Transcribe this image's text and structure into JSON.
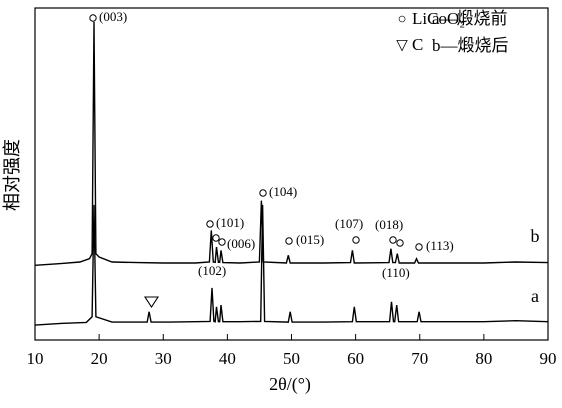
{
  "chart_data": {
    "type": "line",
    "xlabel": "2θ/(°)",
    "ylabel": "相对强度",
    "xlim": [
      10,
      90
    ],
    "xticks": [
      10,
      20,
      30,
      40,
      50,
      60,
      70,
      80,
      90
    ],
    "ylim": [
      0,
      100
    ],
    "series": [
      {
        "name": "b",
        "color": "#000000",
        "x": [
          10,
          14,
          17,
          18.5,
          18.9,
          19.2,
          19.5,
          20,
          22,
          26,
          30,
          35,
          37.2,
          37.5,
          37.8,
          38.1,
          38.3,
          38.6,
          38.8,
          39,
          39.3,
          42,
          45,
          45.3,
          45.6,
          49.2,
          49.5,
          49.8,
          55,
          59.2,
          59.5,
          59.8,
          65.2,
          65.5,
          65.8,
          66.2,
          66.5,
          66.8,
          69.2,
          69.5,
          69.8,
          75,
          80,
          85,
          90
        ],
        "values": [
          22.5,
          23,
          23.5,
          24.5,
          26,
          95.8,
          26,
          25,
          23.5,
          23.3,
          23.2,
          23.2,
          23.5,
          33,
          23.5,
          23.4,
          28,
          23.4,
          23.4,
          27,
          23.3,
          23.2,
          23.5,
          42,
          23.5,
          23.2,
          25.5,
          23.2,
          23.2,
          23.3,
          27,
          23.2,
          23.3,
          27.5,
          23.3,
          23.3,
          26,
          23.2,
          23.2,
          24.5,
          23.2,
          23.2,
          23.2,
          23.5,
          23.3
        ]
      },
      {
        "name": "a",
        "color": "#000000",
        "x": [
          10,
          14,
          18,
          18.9,
          19.2,
          19.5,
          22,
          27.5,
          27.8,
          28.1,
          31,
          35,
          37.3,
          37.6,
          37.9,
          38.1,
          38.3,
          38.6,
          38.8,
          39,
          39.3,
          42,
          45.2,
          45.5,
          45.8,
          49.5,
          49.8,
          50.1,
          55,
          59.5,
          59.8,
          60.1,
          65.3,
          65.6,
          65.9,
          66.1,
          66.4,
          66.7,
          69.6,
          69.9,
          70.2,
          75,
          80,
          85,
          90
        ],
        "values": [
          4.5,
          5,
          5.3,
          7,
          40.7,
          7,
          5.4,
          5.4,
          8.5,
          5.4,
          5.4,
          5.5,
          5.6,
          15.7,
          5.6,
          5.5,
          10,
          5.5,
          5.5,
          10.5,
          5.5,
          5.5,
          5.6,
          40.7,
          5.6,
          5.4,
          8.5,
          5.4,
          5.4,
          5.5,
          10,
          5.5,
          5.5,
          11.5,
          5.5,
          5.5,
          10.5,
          5.5,
          5.5,
          8.5,
          5.5,
          5.5,
          5.5,
          5.8,
          5.5
        ]
      }
    ],
    "legend": [
      {
        "symbol": "○",
        "text": "LiCoO₂"
      },
      {
        "symbol": "▽",
        "text": "C"
      },
      {
        "text": "a—煅烧前"
      },
      {
        "text": "b—煅烧后"
      }
    ],
    "annotations": [
      "(003)",
      "(101)",
      "(006)",
      "(104)",
      "(015)",
      "(107)",
      "(018)",
      "(113)",
      "(102)",
      "(110)"
    ]
  }
}
